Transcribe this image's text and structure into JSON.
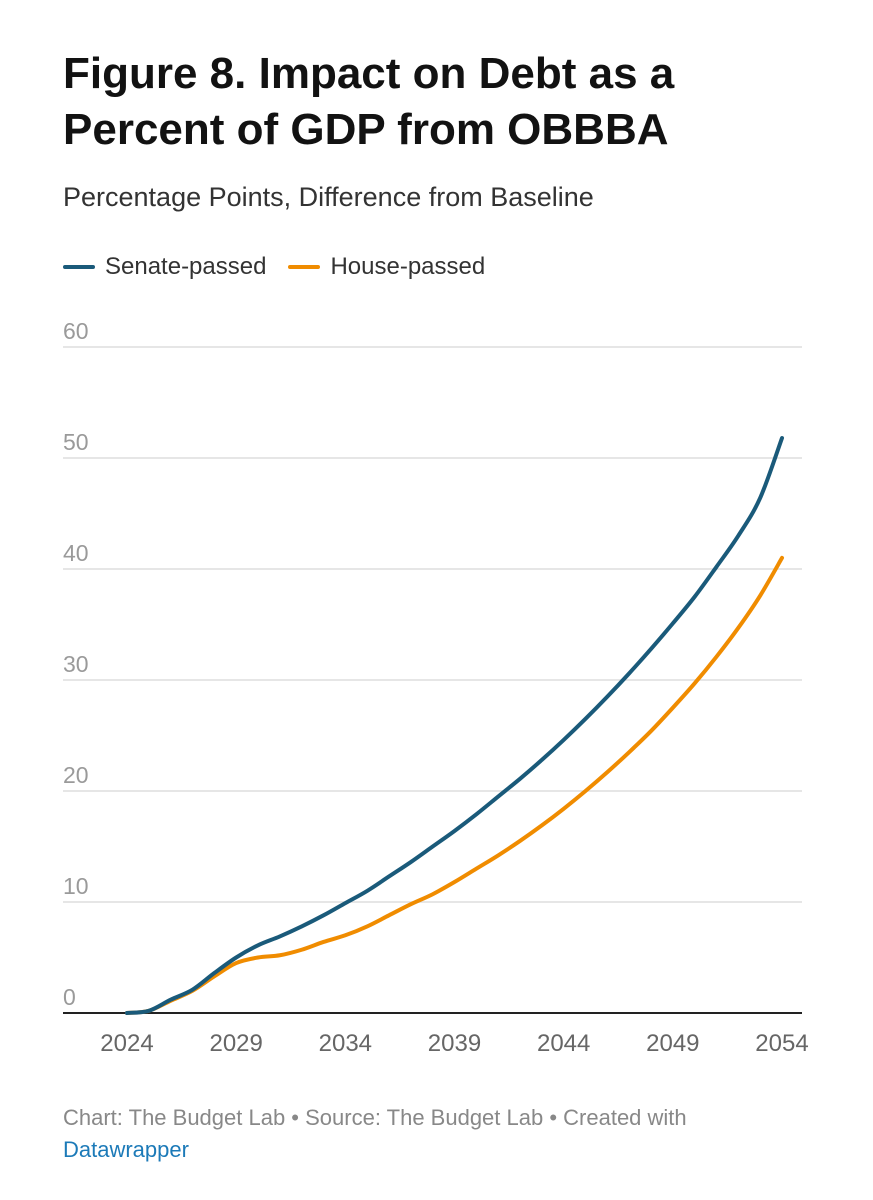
{
  "header": {
    "title": "Figure 8. Impact on Debt as a Percent of GDP from OBBBA",
    "subtitle": "Percentage Points, Difference from Baseline"
  },
  "footer": {
    "credit": "Chart: The Budget Lab • Source: The Budget Lab • Created with",
    "link": "Datawrapper"
  },
  "colors": {
    "senate": "#1a5a7a",
    "house": "#f08c00",
    "grid": "#dddddd",
    "tick_text": "#9a9a9a"
  },
  "chart_data": {
    "type": "line",
    "title": "Figure 8. Impact on Debt as a Percent of GDP from OBBBA",
    "subtitle": "Percentage Points, Difference from Baseline",
    "xlabel": "",
    "ylabel": "",
    "x": [
      2024,
      2025,
      2026,
      2027,
      2028,
      2029,
      2030,
      2031,
      2032,
      2033,
      2034,
      2035,
      2036,
      2037,
      2038,
      2039,
      2040,
      2041,
      2042,
      2043,
      2044,
      2045,
      2046,
      2047,
      2048,
      2049,
      2050,
      2051,
      2052,
      2053,
      2054
    ],
    "xticks": [
      2024,
      2029,
      2034,
      2039,
      2044,
      2049,
      2054
    ],
    "yticks": [
      0,
      10,
      20,
      30,
      40,
      50,
      60
    ],
    "xlim": [
      2024,
      2054
    ],
    "ylim": [
      0,
      60
    ],
    "grid": true,
    "legend_position": "top-left",
    "series": [
      {
        "name": "Senate-passed",
        "color": "#1a5a7a",
        "values": [
          0,
          0.2,
          1.2,
          2.1,
          3.6,
          5.0,
          6.1,
          6.9,
          7.8,
          8.8,
          9.9,
          11.0,
          12.3,
          13.6,
          15.0,
          16.4,
          17.9,
          19.5,
          21.1,
          22.8,
          24.6,
          26.5,
          28.5,
          30.6,
          32.8,
          35.1,
          37.5,
          40.2,
          43.0,
          46.4,
          51.8
        ]
      },
      {
        "name": "House-passed",
        "color": "#f08c00",
        "values": [
          0,
          0.2,
          1.1,
          2.0,
          3.3,
          4.5,
          5.0,
          5.2,
          5.7,
          6.4,
          7.0,
          7.8,
          8.8,
          9.8,
          10.7,
          11.8,
          13.0,
          14.2,
          15.5,
          16.9,
          18.4,
          20.0,
          21.7,
          23.5,
          25.4,
          27.5,
          29.7,
          32.1,
          34.7,
          37.6,
          41.0
        ]
      }
    ]
  }
}
